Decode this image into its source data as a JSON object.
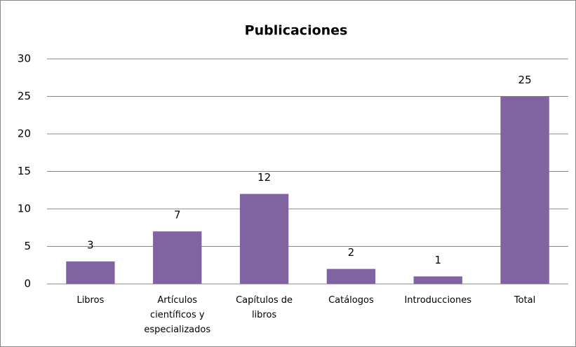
{
  "chart_data": {
    "type": "bar",
    "title": "Publicaciones",
    "categories": [
      "Libros",
      "Artículos científicos y especializados",
      "Capítulos de libros",
      "Catálogos",
      "Introducciones",
      "Total"
    ],
    "values": [
      3,
      7,
      12,
      2,
      1,
      25
    ],
    "color": "#8064a2",
    "ylim": [
      0,
      30
    ],
    "yticks": [
      0,
      5,
      10,
      15,
      20,
      25,
      30
    ],
    "grid": true
  }
}
